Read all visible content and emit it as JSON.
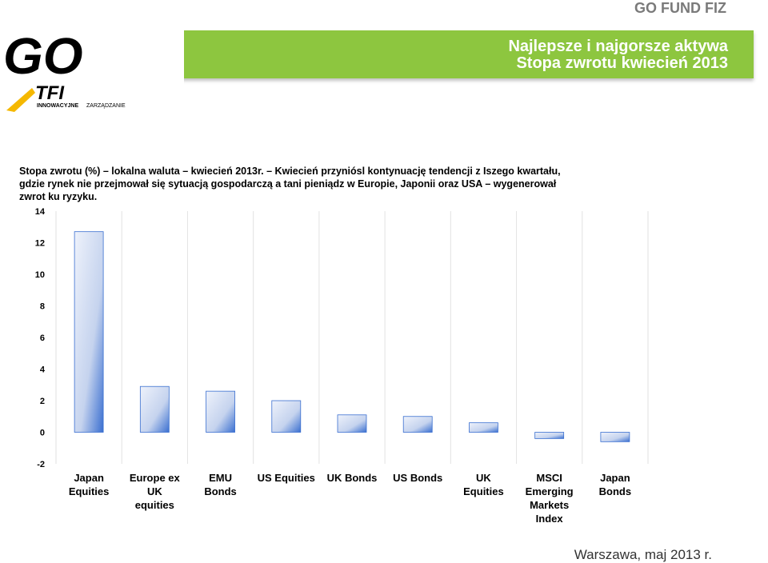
{
  "header": {
    "fund_label": "GO FUND FIZ",
    "banner_line1": "Najlepsze i najgorsze aktywa",
    "banner_line2": "Stopa zwrotu kwiecień 2013"
  },
  "logo": {
    "brand": "GO",
    "sub": "TFI",
    "tagline_bold": "INNOWACYJNE",
    "tagline_rest": "ZARZĄDZANIE"
  },
  "intro_text": "Stopa zwrotu (%) – lokalna waluta –  kwiecień 2013r. – Kwiecień przyniósl kontynuację tendencji z Iszego kwartału, gdzie rynek nie przejmował się sytuacją gospodarczą a  tani pieniądz w Europie, Japonii oraz USA – wygenerował zwrot ku ryzyku.",
  "footer": "Warszawa, maj 2013 r.",
  "colors": {
    "banner": "#8dc63f",
    "bar_fill": "#c5d3ee",
    "bar_edge": "#3a6fd0",
    "logo_dark": "#000000",
    "logo_green": "#8dc63f",
    "logo_yellow": "#f5b800"
  },
  "chart_data": {
    "type": "bar",
    "categories": [
      [
        "Japan",
        "Equities"
      ],
      [
        "Europe ex",
        "UK",
        "equities"
      ],
      [
        "EMU",
        "Bonds"
      ],
      [
        "US Equities"
      ],
      [
        "UK Bonds"
      ],
      [
        "US Bonds"
      ],
      [
        "UK",
        "Equities"
      ],
      [
        "MSCI",
        "Emerging",
        "Markets",
        "Index"
      ],
      [
        "Japan",
        "Bonds"
      ]
    ],
    "values": [
      12.7,
      2.9,
      2.6,
      2.0,
      1.1,
      1.0,
      0.6,
      -0.4,
      -0.6
    ],
    "ylim": [
      -2,
      14
    ],
    "yticks": [
      -2,
      0,
      2,
      4,
      6,
      8,
      10,
      12,
      14
    ],
    "grid": "vertical"
  }
}
